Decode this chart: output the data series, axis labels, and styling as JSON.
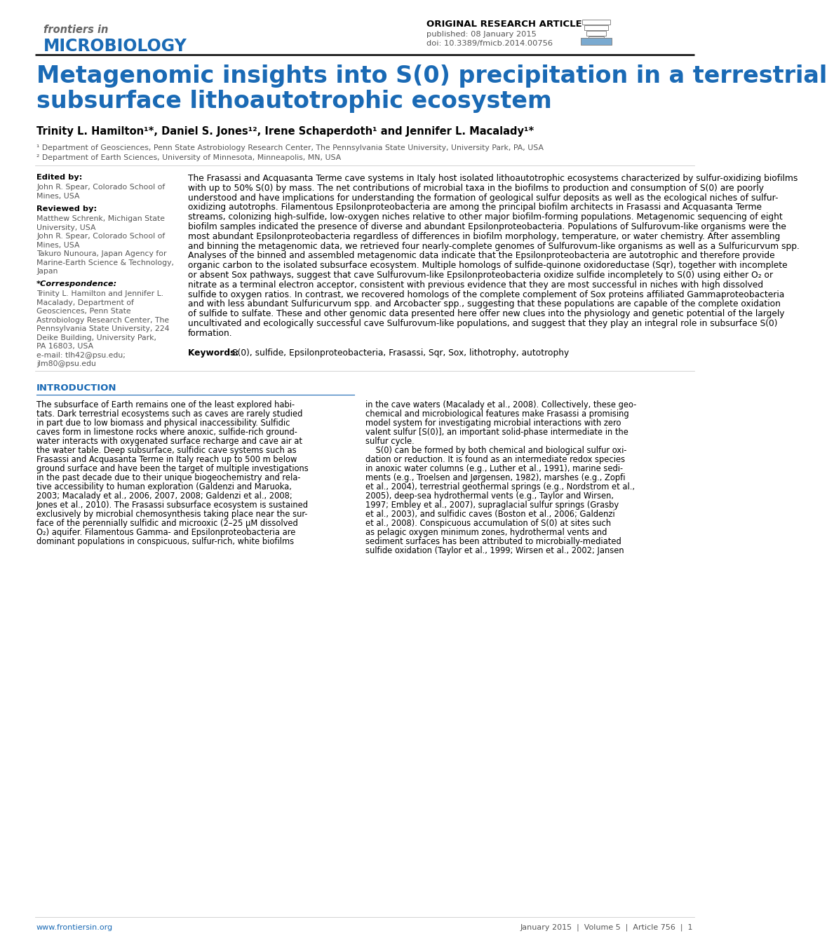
{
  "bg_color": "#ffffff",
  "blue_color": "#1a6ab5",
  "black": "#000000",
  "gray_text": "#555555",
  "light_gray": "#999999",
  "journal_name_top": "frontiers in",
  "journal_name_bold": "MICROBIOLOGY",
  "article_type": "ORIGINAL RESEARCH ARTICLE",
  "published": "published: 08 January 2015",
  "doi": "doi: 10.3389/fmicb.2014.00756",
  "title_line1": "Metagenomic insights into S(0) precipitation in a terrestrial",
  "title_line2": "subsurface lithoautotrophic ecosystem",
  "authors": "Trinity L. Hamilton¹*, Daniel S. Jones¹², Irene Schaperdoth¹ and Jennifer L. Macalady¹*",
  "affil1": "¹ Department of Geosciences, Penn State Astrobiology Research Center, The Pennsylvania State University, University Park, PA, USA",
  "affil2": "² Department of Earth Sciences, University of Minnesota, Minneapolis, MN, USA",
  "edited_by_label": "Edited by:",
  "edited_by": "John R. Spear, Colorado School of\nMines, USA",
  "reviewed_by_label": "Reviewed by:",
  "reviewed_by": "Matthew Schrenk, Michigan State\nUniversity, USA\nJohn R. Spear, Colorado School of\nMines, USA\nTakuro Nunoura, Japan Agency for\nMarine-Earth Science & Technology,\nJapan",
  "correspondence_label": "*Correspondence:",
  "correspondence": "Trinity L. Hamilton and Jennifer L.\nMacalady, Department of\nGeosciences, Penn State\nAstrobiology Research Center, The\nPennsylvania State University, 224\nDeike Building, University Park,\nPA 16803, USA\ne-mail: tlh42@psu.edu;\njlm80@psu.edu",
  "abstract_lines": [
    "The Frasassi and Acquasanta Terme cave systems in Italy host isolated lithoautotrophic ecosystems characterized by sulfur-oxidizing biofilms",
    "with up to 50% S(0) by mass. The net contributions of microbial taxa in the biofilms to production and consumption of S(0) are poorly",
    "understood and have implications for understanding the formation of geological sulfur deposits as well as the ecological niches of sulfur-",
    "oxidizing autotrophs. Filamentous Epsilonproteobacteria are among the principal biofilm architects in Frasassi and Acquasanta Terme",
    "streams, colonizing high-sulfide, low-oxygen niches relative to other major biofilm-forming populations. Metagenomic sequencing of eight",
    "biofilm samples indicated the presence of diverse and abundant Epsilonproteobacteria. Populations of Sulfurovum-like organisms were the",
    "most abundant Epsilonproteobacteria regardless of differences in biofilm morphology, temperature, or water chemistry. After assembling",
    "and binning the metagenomic data, we retrieved four nearly-complete genomes of Sulfurovum-like organisms as well as a Sulfuricurvum spp.",
    "Analyses of the binned and assembled metagenomic data indicate that the Epsilonproteobacteria are autotrophic and therefore provide",
    "organic carbon to the isolated subsurface ecosystem. Multiple homologs of sulfide-quinone oxidoreductase (Sqr), together with incomplete",
    "or absent Sox pathways, suggest that cave Sulfurovum-like Epsilonproteobacteria oxidize sulfide incompletely to S(0) using either O₂ or",
    "nitrate as a terminal electron acceptor, consistent with previous evidence that they are most successful in niches with high dissolved",
    "sulfide to oxygen ratios. In contrast, we recovered homologs of the complete complement of Sox proteins affiliated Gammaproteobacteria",
    "and with less abundant Sulfuricurvum spp. and Arcobacter spp., suggesting that these populations are capable of the complete oxidation",
    "of sulfide to sulfate. These and other genomic data presented here offer new clues into the physiology and genetic potential of the largely",
    "uncultivated and ecologically successful cave Sulfurovum-like populations, and suggest that they play an integral role in subsurface S(0)",
    "formation."
  ],
  "keywords_label": "Keywords: ",
  "keywords": "S(0), sulfide, Epsilonproteobacteria, Frasassi, Sqr, Sox, lithotrophy, autotrophy",
  "intro_heading": "INTRODUCTION",
  "intro_col1_lines": [
    "The subsurface of Earth remains one of the least explored habi-",
    "tats. Dark terrestrial ecosystems such as caves are rarely studied",
    "in part due to low biomass and physical inaccessibility. Sulfidic",
    "caves form in limestone rocks where anoxic, sulfide-rich ground-",
    "water interacts with oxygenated surface recharge and cave air at",
    "the water table. Deep subsurface, sulfidic cave systems such as",
    "Frasassi and Acquasanta Terme in Italy reach up to 500 m below",
    "ground surface and have been the target of multiple investigations",
    "in the past decade due to their unique biogeochemistry and rela-",
    "tive accessibility to human exploration (Galdenzi and Maruoka,",
    "2003; Macalady et al., 2006, 2007, 2008; Galdenzi et al., 2008;",
    "Jones et al., 2010). The Frasassi subsurface ecosystem is sustained",
    "exclusively by microbial chemosynthesis taking place near the sur-",
    "face of the perennially sulfidic and microoxic (2–25 μM dissolved",
    "O₂) aquifer. Filamentous Gamma- and Epsilonproteobacteria are",
    "dominant populations in conspicuous, sulfur-rich, white biofilms"
  ],
  "intro_col2_lines": [
    "in the cave waters (Macalady et al., 2008). Collectively, these geo-",
    "chemical and microbiological features make Frasassi a promising",
    "model system for investigating microbial interactions with zero",
    "valent sulfur [S(0)], an important solid-phase intermediate in the",
    "sulfur cycle.",
    "    S(0) can be formed by both chemical and biological sulfur oxi-",
    "dation or reduction. It is found as an intermediate redox species",
    "in anoxic water columns (e.g., Luther et al., 1991), marine sedi-",
    "ments (e.g., Troelsen and Jørgensen, 1982), marshes (e.g., Zopfi",
    "et al., 2004), terrestrial geothermal springs (e.g., Nordstrom et al.,",
    "2005), deep-sea hydrothermal vents (e.g., Taylor and Wirsen,",
    "1997; Embley et al., 2007), supraglacial sulfur springs (Grasby",
    "et al., 2003), and sulfidic caves (Boston et al., 2006; Galdenzi",
    "et al., 2008). Conspicuous accumulation of S(0) at sites such",
    "as pelagic oxygen minimum zones, hydrothermal vents and",
    "sediment surfaces has been attributed to microbially-mediated",
    "sulfide oxidation (Taylor et al., 1999; Wirsen et al., 2002; Jansen"
  ],
  "footer_left": "www.frontiersin.org",
  "footer_right": "January 2015  |  Volume 5  |  Article 756  |  1"
}
